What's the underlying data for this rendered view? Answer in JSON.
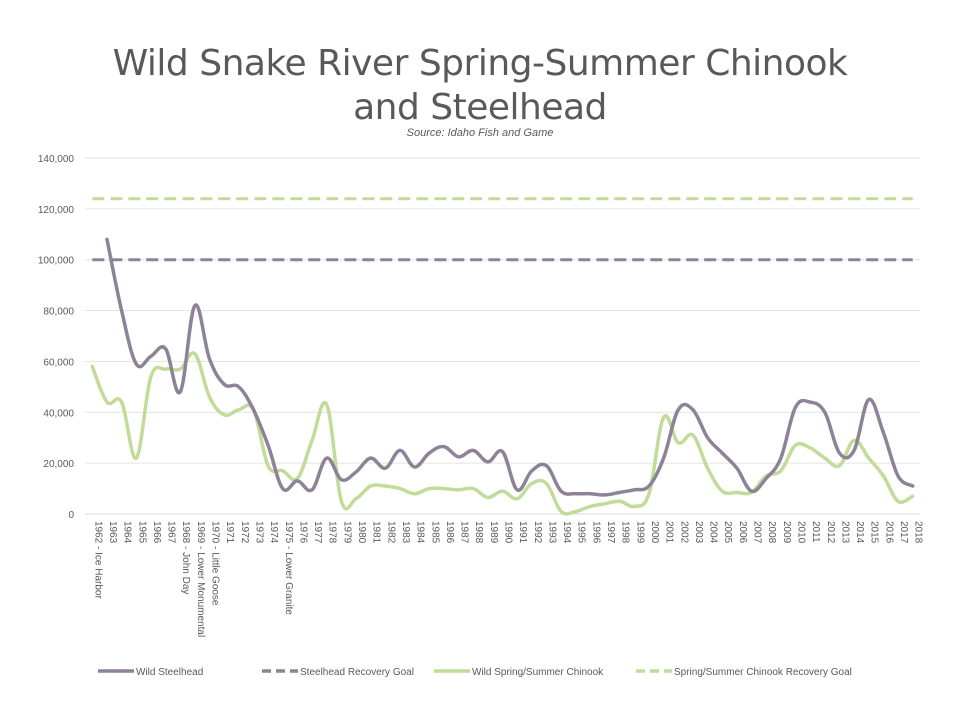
{
  "title": "Wild Snake River Spring-Summer Chinook and Steelhead",
  "subtitle": "Source: Idaho Fish and Game",
  "chart_data": {
    "type": "line",
    "title": "Wild Snake River Spring-Summer Chinook and Steelhead",
    "subtitle": "Source: Idaho Fish and Game",
    "xlabel": "",
    "ylabel": "",
    "ylim": [
      0,
      140000
    ],
    "yticks": [
      "0",
      "20,000",
      "40,000",
      "60,000",
      "80,000",
      "100,000",
      "120,000",
      "140,000"
    ],
    "grid": true,
    "legend_position": "bottom",
    "categories": [
      "1962 - Ice Harbor",
      "1963",
      "1964",
      "1965",
      "1966",
      "1967",
      "1968 - John Day",
      "1969 - Lower Monumental",
      "1970 - Little Goose",
      "1971",
      "1972",
      "1973",
      "1974",
      "1975 - Lower Granite",
      "1976",
      "1977",
      "1978",
      "1979",
      "1980",
      "1981",
      "1982",
      "1983",
      "1984",
      "1985",
      "1986",
      "1987",
      "1988",
      "1989",
      "1990",
      "1991",
      "1992",
      "1993",
      "1994",
      "1995",
      "1996",
      "1997",
      "1998",
      "1999",
      "2000",
      "2001",
      "2002",
      "2003",
      "2004",
      "2005",
      "2006",
      "2007",
      "2008",
      "2009",
      "2010",
      "2011",
      "2012",
      "2013",
      "2014",
      "2015",
      "2016",
      "2017",
      "2018"
    ],
    "series": [
      {
        "name": "Wild Steelhead",
        "color": "#8e8299",
        "dash": false,
        "values": [
          null,
          108000,
          80000,
          59000,
          62000,
          65000,
          48000,
          82000,
          61000,
          51000,
          50000,
          41000,
          27000,
          10000,
          13000,
          9500,
          22000,
          13500,
          16500,
          22000,
          18000,
          25000,
          18500,
          24000,
          26500,
          22500,
          25000,
          20500,
          24500,
          9500,
          17000,
          19000,
          9000,
          8000,
          8000,
          7500,
          8500,
          9500,
          11000,
          22000,
          41000,
          41000,
          30000,
          24000,
          18000,
          9000,
          14000,
          22000,
          42000,
          44000,
          40000,
          24000,
          25000,
          45000,
          32000,
          15000,
          11000
        ]
      },
      {
        "name": "Steelhead Recovery Goal",
        "color": "#8e8299",
        "dash": true,
        "values": [
          100000,
          100000,
          100000,
          100000,
          100000,
          100000,
          100000,
          100000,
          100000,
          100000,
          100000,
          100000,
          100000,
          100000,
          100000,
          100000,
          100000,
          100000,
          100000,
          100000,
          100000,
          100000,
          100000,
          100000,
          100000,
          100000,
          100000,
          100000,
          100000,
          100000,
          100000,
          100000,
          100000,
          100000,
          100000,
          100000,
          100000,
          100000,
          100000,
          100000,
          100000,
          100000,
          100000,
          100000,
          100000,
          100000,
          100000,
          100000,
          100000,
          100000,
          100000,
          100000,
          100000,
          100000,
          100000,
          100000,
          100000
        ]
      },
      {
        "name": "Wild Spring/Summer Chinook",
        "color": "#c1dc98",
        "dash": false,
        "values": [
          58000,
          44000,
          44000,
          22000,
          54000,
          57000,
          57000,
          63000,
          46000,
          39000,
          41000,
          41000,
          19000,
          17000,
          14000,
          29000,
          43000,
          5000,
          6000,
          11000,
          11000,
          10000,
          8000,
          10000,
          10000,
          9500,
          10000,
          6500,
          9000,
          6000,
          12000,
          12000,
          1000,
          1000,
          3000,
          4000,
          5000,
          3000,
          8000,
          38000,
          28000,
          31000,
          18000,
          9000,
          8500,
          8500,
          15000,
          17000,
          27000,
          26000,
          22000,
          19000,
          29000,
          22000,
          15000,
          5000,
          7000
        ]
      },
      {
        "name": "Spring/Summer Chinook Recovery Goal",
        "color": "#c1dc98",
        "dash": true,
        "values": [
          124000,
          124000,
          124000,
          124000,
          124000,
          124000,
          124000,
          124000,
          124000,
          124000,
          124000,
          124000,
          124000,
          124000,
          124000,
          124000,
          124000,
          124000,
          124000,
          124000,
          124000,
          124000,
          124000,
          124000,
          124000,
          124000,
          124000,
          124000,
          124000,
          124000,
          124000,
          124000,
          124000,
          124000,
          124000,
          124000,
          124000,
          124000,
          124000,
          124000,
          124000,
          124000,
          124000,
          124000,
          124000,
          124000,
          124000,
          124000,
          124000,
          124000,
          124000,
          124000,
          124000,
          124000,
          124000,
          124000,
          124000
        ]
      }
    ]
  }
}
